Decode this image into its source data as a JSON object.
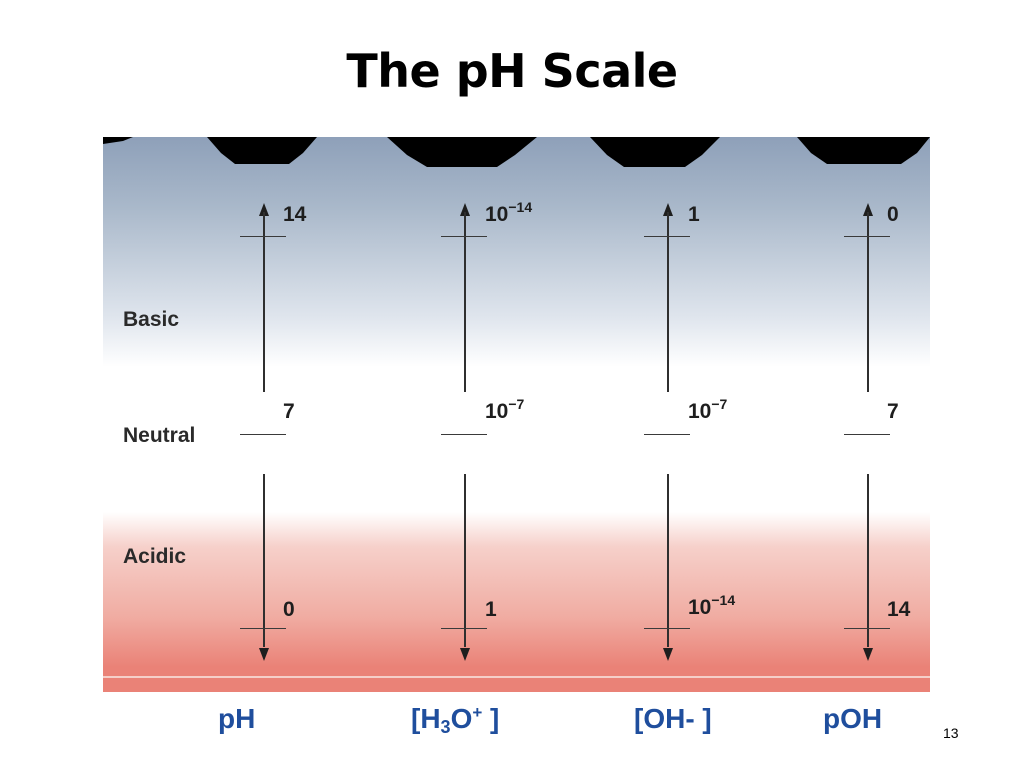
{
  "slide": {
    "title": "The pH Scale",
    "page_number": "13"
  },
  "regions": {
    "basic": "Basic",
    "neutral": "Neutral",
    "acidic": "Acidic"
  },
  "scales": [
    {
      "title": "pH",
      "top": {
        "base": "14",
        "exp": ""
      },
      "mid": {
        "base": "7",
        "exp": ""
      },
      "bottom": {
        "base": "0",
        "exp": ""
      }
    },
    {
      "title_parts": {
        "open": "[H",
        "sub": "3",
        "mid": "O",
        "sup": "+",
        "close": " ]"
      },
      "top": {
        "base": "10",
        "exp": "−14"
      },
      "mid": {
        "base": "10",
        "exp": "−7"
      },
      "bottom": {
        "base": "1",
        "exp": ""
      }
    },
    {
      "title": "[OH- ]",
      "top": {
        "base": "1",
        "exp": ""
      },
      "mid": {
        "base": "10",
        "exp": "−7"
      },
      "bottom": {
        "base": "10",
        "exp": "−14"
      }
    },
    {
      "title": "pOH",
      "top": {
        "base": "0",
        "exp": ""
      },
      "mid": {
        "base": "7",
        "exp": ""
      },
      "bottom": {
        "base": "14",
        "exp": ""
      }
    }
  ],
  "colors": {
    "axis_title": "#1f4e9d",
    "basic_band": "#8ea0b9",
    "acidic_band": "#ea8277"
  }
}
